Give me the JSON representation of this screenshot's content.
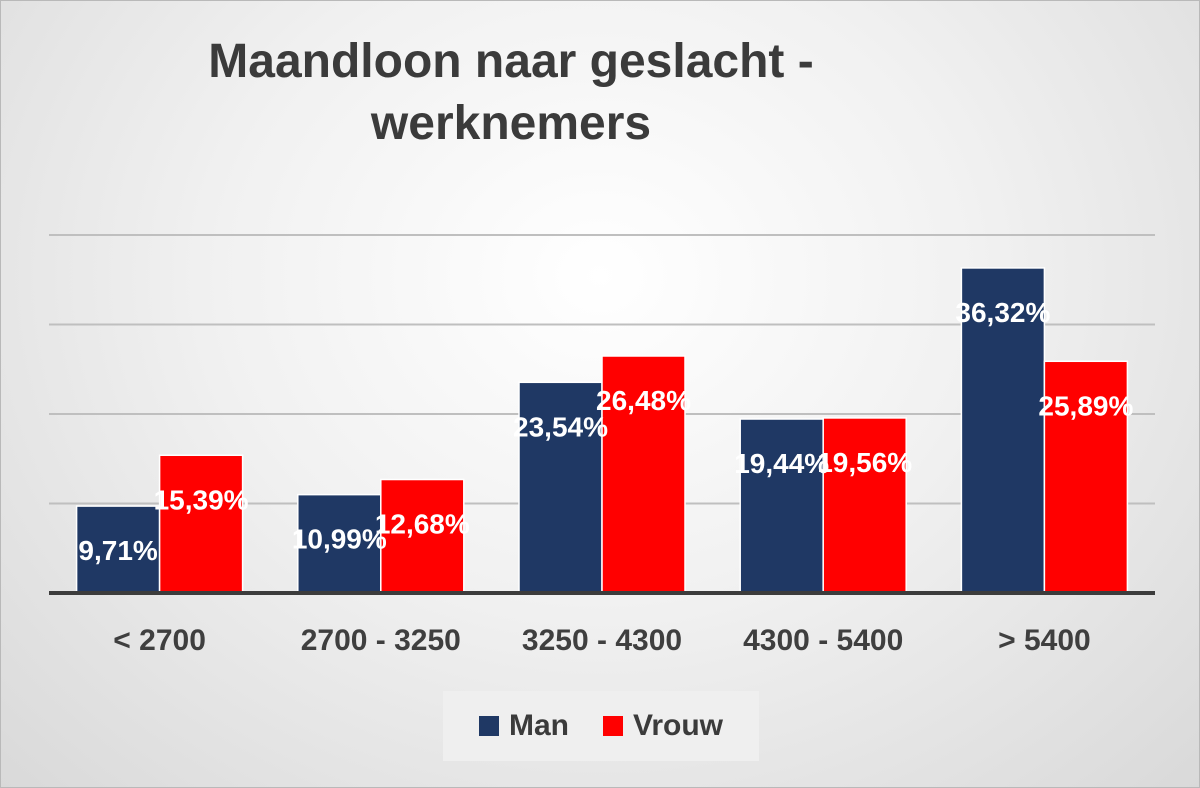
{
  "chart_data": {
    "type": "bar",
    "title_lines": [
      "Maandloon naar geslacht -",
      "werknemers"
    ],
    "xlabel": "",
    "ylabel": "",
    "categories": [
      "< 2700",
      "2700 - 3250",
      "3250 - 4300",
      "4300 - 5400",
      "> 5400"
    ],
    "series": [
      {
        "name": "Man",
        "color": "#1f3864",
        "values": [
          9.71,
          10.99,
          23.54,
          19.44,
          36.32
        ],
        "labels": [
          "9,71%",
          "10,99%",
          "23,54%",
          "19,44%",
          "36,32%"
        ]
      },
      {
        "name": "Vrouw",
        "color": "#ff0000",
        "values": [
          15.39,
          12.68,
          26.48,
          19.56,
          25.89
        ],
        "labels": [
          "15,39%",
          "12,68%",
          "26,48%",
          "19,56%",
          "25,89%"
        ]
      }
    ],
    "ylim": [
      0,
      40
    ],
    "yticks": [
      0,
      10,
      20,
      30,
      40
    ],
    "show_y_tick_labels": false,
    "grid": true,
    "legend_position": "bottom",
    "data_label_color": "#ffffff"
  }
}
